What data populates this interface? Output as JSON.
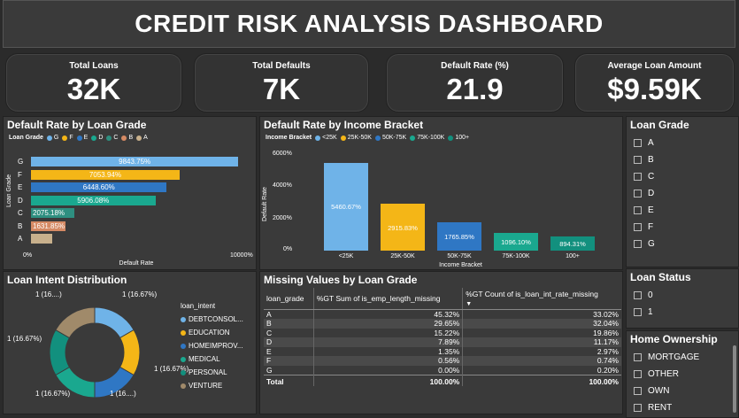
{
  "title": "CREDIT RISK ANALYSIS DASHBOARD",
  "kpis": [
    {
      "label": "Total Loans",
      "value": "32K"
    },
    {
      "label": "Total Defaults",
      "value": "7K"
    },
    {
      "label": "Default Rate (%)",
      "value": "21.9"
    },
    {
      "label": "Average Loan Amount",
      "value": "$9.59K"
    }
  ],
  "grade_chart": {
    "title": "Default Rate by Loan Grade",
    "legend_title": "Loan Grade",
    "ylabel": "Loan Grade",
    "xlabel": "Default Rate",
    "x_ticks": [
      "0%",
      "10000%"
    ]
  },
  "income_chart": {
    "title": "Default Rate by Income Bracket",
    "legend_title": "Income Bracket",
    "ylabel": "Default Rate",
    "xlabel": "Income Bracket",
    "y_ticks": [
      "6000%",
      "4000%",
      "2000%",
      "0%"
    ]
  },
  "intent_chart": {
    "title": "Loan Intent Distribution",
    "legend_title": "loan_intent",
    "slice_labels": [
      "1",
      "(16.67%)"
    ]
  },
  "missing_table": {
    "title": "Missing Values by Loan Grade",
    "headers": [
      "loan_grade",
      "%GT Sum of is_emp_length_missing",
      "%GT Count of is_loan_int_rate_missing"
    ],
    "rows": [
      [
        "A",
        "45.32%",
        "33.02%"
      ],
      [
        "B",
        "29.65%",
        "32.04%"
      ],
      [
        "C",
        "15.22%",
        "19.86%"
      ],
      [
        "D",
        "7.89%",
        "11.17%"
      ],
      [
        "E",
        "1.35%",
        "2.97%"
      ],
      [
        "F",
        "0.56%",
        "0.74%"
      ],
      [
        "G",
        "0.00%",
        "0.20%"
      ]
    ],
    "total": [
      "Total",
      "100.00%",
      "100.00%"
    ]
  },
  "slicers": {
    "loan_grade": {
      "title": "Loan Grade",
      "items": [
        "A",
        "B",
        "C",
        "D",
        "E",
        "F",
        "G"
      ]
    },
    "loan_status": {
      "title": "Loan Status",
      "items": [
        "0",
        "1"
      ]
    },
    "home_ownership": {
      "title": "Home Ownership",
      "items": [
        "MORTGAGE",
        "OTHER",
        "OWN",
        "RENT"
      ]
    }
  },
  "chart_data": [
    {
      "type": "bar",
      "title": "Default Rate by Loan Grade",
      "orientation": "horizontal",
      "categories": [
        "G",
        "F",
        "E",
        "D",
        "C",
        "B",
        "A"
      ],
      "values": [
        9843.75,
        7053.94,
        6448.6,
        5906.08,
        2075.18,
        1631.85,
        995.0
      ],
      "labels": [
        "9843.75%",
        "7053.94%",
        "6448.60%",
        "5906.08%",
        "2075.18%",
        "1631.85%",
        ""
      ],
      "colors": [
        "#6fb3e8",
        "#f4b617",
        "#2f77c4",
        "#1aa88f",
        "#2e8f80",
        "#d58a64",
        "#c8b08c"
      ],
      "xlim": [
        0,
        10000
      ],
      "legend": "top-left"
    },
    {
      "type": "bar",
      "title": "Default Rate by Income Bracket",
      "categories": [
        "<25K",
        "25K-50K",
        "50K-75K",
        "75K-100K",
        "100+"
      ],
      "values": [
        5460.67,
        2915.83,
        1765.85,
        1096.1,
        894.31
      ],
      "labels": [
        "5460.67%",
        "2915.83%",
        "1765.85%",
        "1096.10%",
        "894.31%"
      ],
      "colors": [
        "#6fb3e8",
        "#f4b617",
        "#2f77c4",
        "#1aa88f",
        "#12907e"
      ],
      "ylim": [
        0,
        6000
      ],
      "legend": "top-left"
    },
    {
      "type": "pie",
      "title": "Loan Intent Distribution",
      "categories": [
        "DEBTCONSOL...",
        "EDUCATION",
        "HOMEIMPROV...",
        "MEDICAL",
        "PERSONAL",
        "VENTURE"
      ],
      "values": [
        1,
        1,
        1,
        1,
        1,
        1
      ],
      "labels": [
        "1 (16.67%)",
        "1 (16.67%)",
        "1 (16....)",
        "1 (16.67%)",
        "1 (16.67%)",
        "1 (16....)"
      ],
      "colors": [
        "#6fb3e8",
        "#f4b617",
        "#2f77c4",
        "#1aa88f",
        "#12907e",
        "#a08a6a"
      ],
      "legend": "right"
    }
  ]
}
